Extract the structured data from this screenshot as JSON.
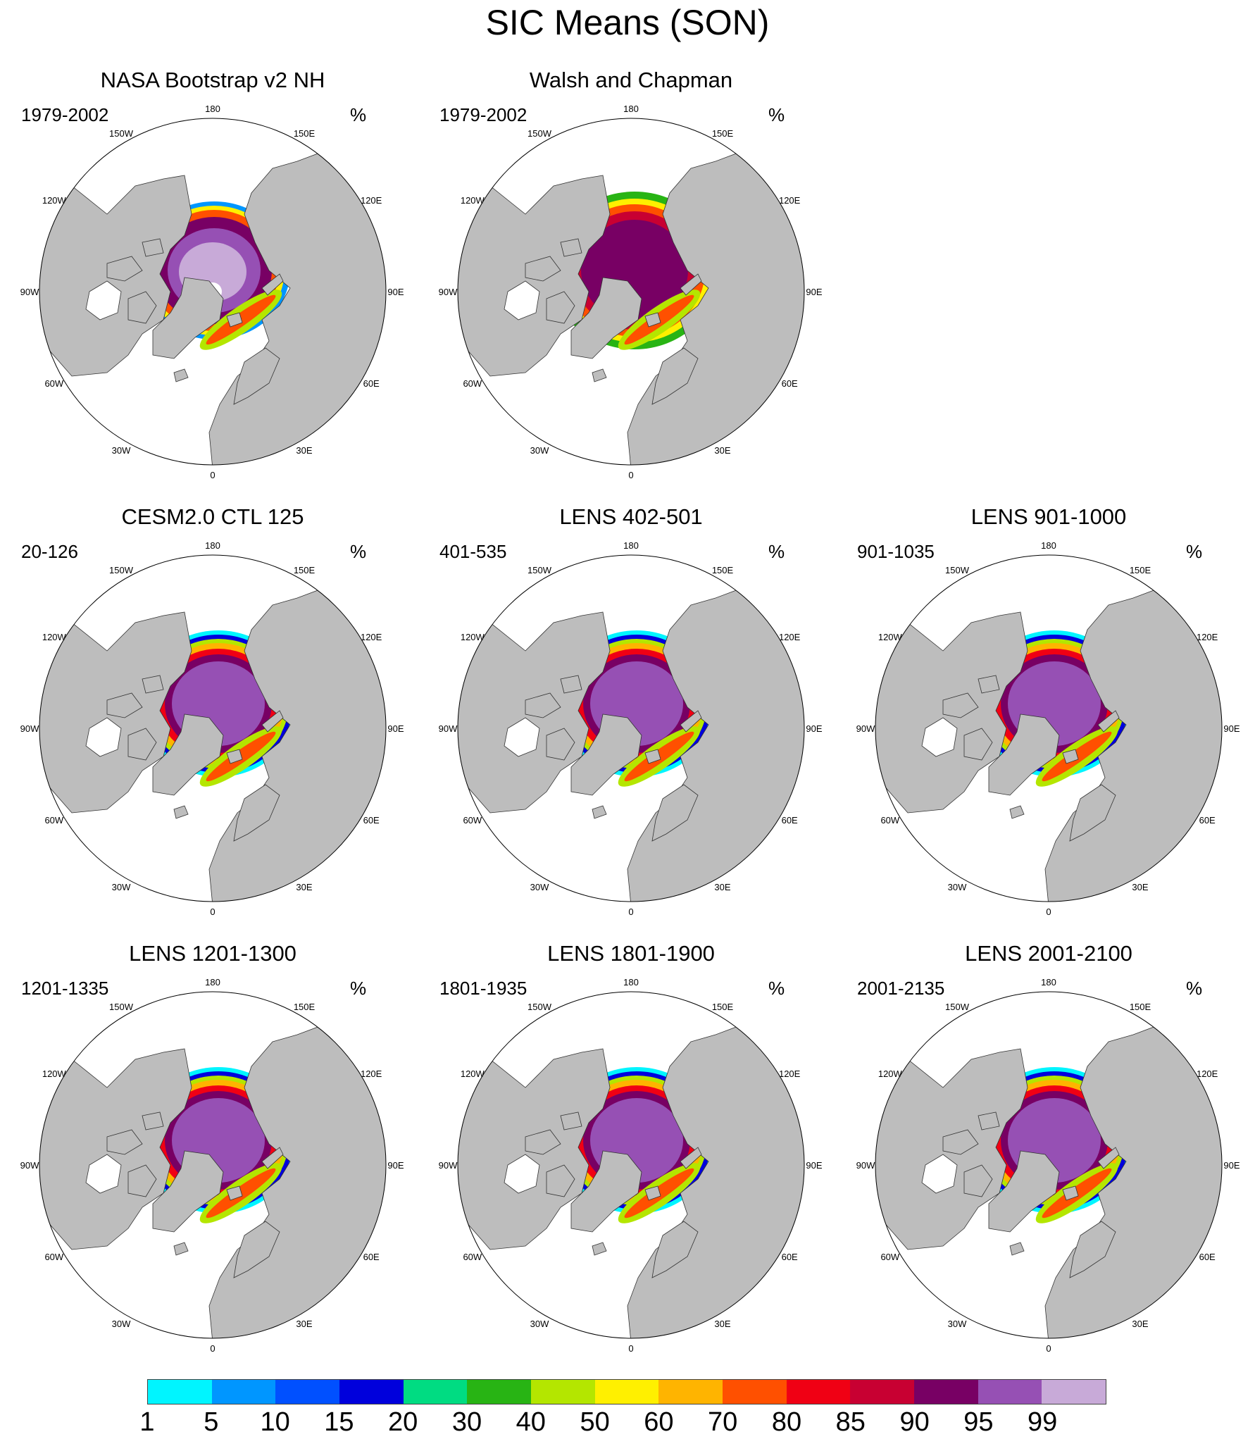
{
  "title": "SIC Means (SON)",
  "unit": "%",
  "longitude_labels": [
    "180",
    "150E",
    "120E",
    "90E",
    "60E",
    "30E",
    "0",
    "30W",
    "60W",
    "90W",
    "120W",
    "150W"
  ],
  "panels": [
    {
      "title": "NASA Bootstrap v2 NH",
      "years": "1979-2002",
      "variant": "nasa"
    },
    {
      "title": "Walsh and Chapman",
      "years": "1979-2002",
      "variant": "walsh"
    },
    {
      "title": "CESM2.0 CTL 125",
      "years": "20-126",
      "variant": "cesm"
    },
    {
      "title": "LENS 402-501",
      "years": "401-535",
      "variant": "lens"
    },
    {
      "title": "LENS 901-1000",
      "years": "901-1035",
      "variant": "lens"
    },
    {
      "title": "LENS 1201-1300",
      "years": "1201-1335",
      "variant": "lens"
    },
    {
      "title": "LENS 1801-1900",
      "years": "1801-1935",
      "variant": "lens"
    },
    {
      "title": "LENS 2001-2100",
      "years": "2001-2135",
      "variant": "lens"
    }
  ],
  "colorbar": {
    "labels": [
      "1",
      "5",
      "10",
      "15",
      "20",
      "30",
      "40",
      "50",
      "60",
      "70",
      "80",
      "85",
      "90",
      "95",
      "99"
    ],
    "colors": [
      "#00f5ff",
      "#0096ff",
      "#0050ff",
      "#0000dc",
      "#00dc82",
      "#28b414",
      "#b4e600",
      "#fff000",
      "#ffb400",
      "#ff5000",
      "#f00014",
      "#c80032",
      "#780064",
      "#9650b4",
      "#c8aad8"
    ]
  },
  "colors": {
    "land": "#bdbdbd",
    "ocean": "#ffffff",
    "coast": "#333333"
  }
}
